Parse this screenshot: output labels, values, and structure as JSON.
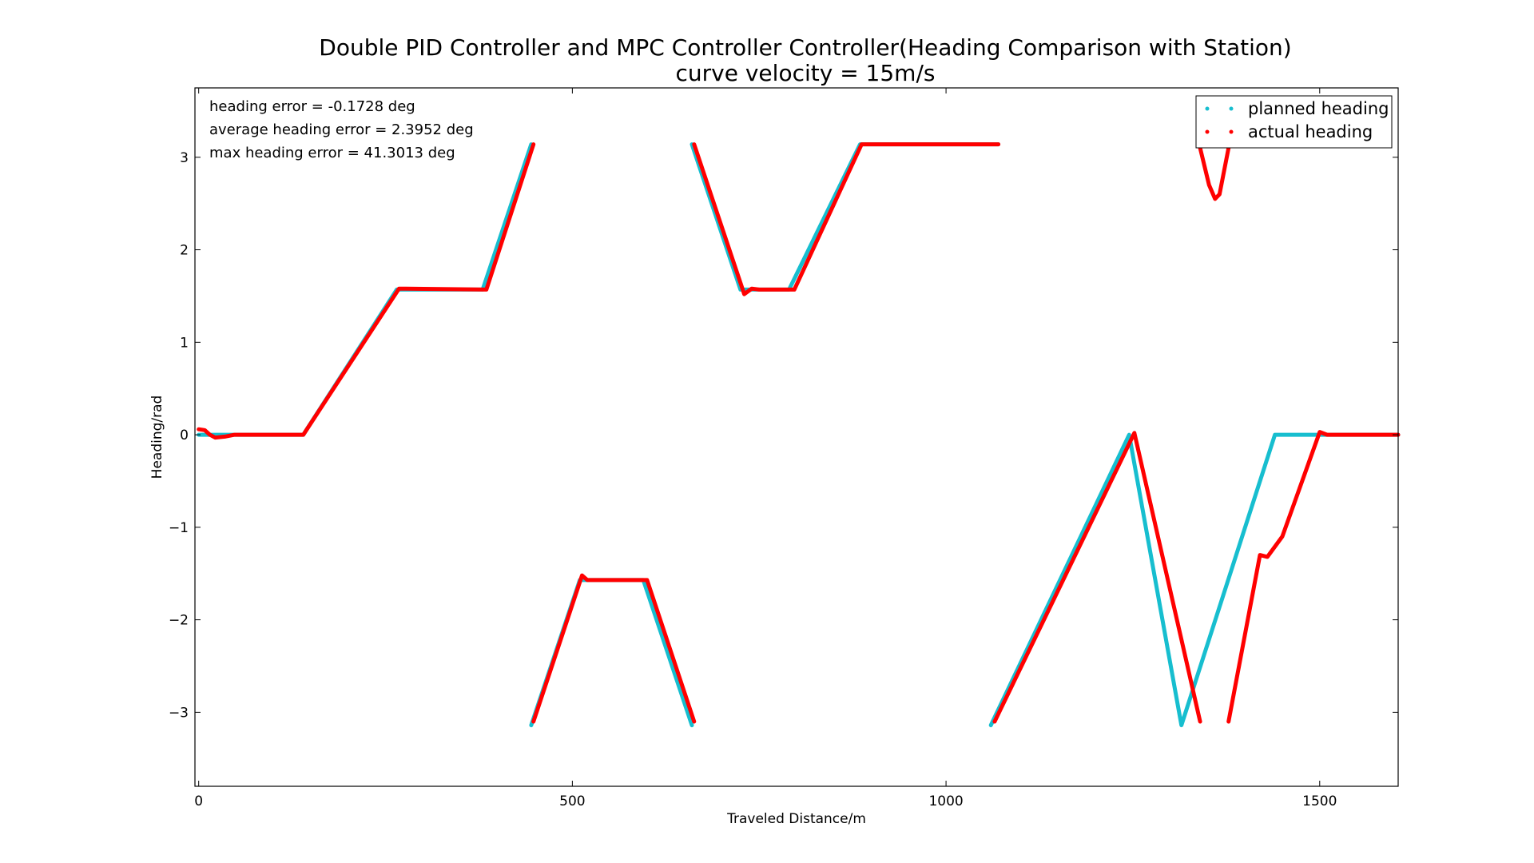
{
  "chart_data": {
    "type": "line",
    "title": "Double PID Controller and MPC Controller Controller(Heading Comparison with Station)",
    "subtitle": "curve velocity = 15m/s",
    "xlabel": "Traveled Distance/m",
    "ylabel": "Heading/rad",
    "xlim": [
      -5,
      1605
    ],
    "ylim": [
      -3.8,
      3.75
    ],
    "xticks": [
      0,
      500,
      1000,
      1500
    ],
    "yticks": [
      -3,
      -2,
      -1,
      0,
      1,
      2,
      3
    ],
    "grid": false,
    "legend_position": "top-right",
    "annotations": [
      "heading error = -0.1728 deg",
      "average heading error = 2.3952 deg",
      "max heading error = 41.3013 deg"
    ],
    "series": [
      {
        "name": "planned heading",
        "color": "#17becf",
        "segments": [
          [
            [
              0,
              0
            ],
            [
              140,
              0
            ],
            [
              265,
              1.57
            ],
            [
              380,
              1.57
            ],
            [
              445,
              3.14
            ]
          ],
          [
            [
              445,
              -3.14
            ],
            [
              510,
              -1.57
            ],
            [
              595,
              -1.57
            ],
            [
              660,
              -3.14
            ]
          ],
          [
            [
              660,
              3.14
            ],
            [
              725,
              1.57
            ],
            [
              790,
              1.57
            ],
            [
              885,
              3.14
            ],
            [
              1070,
              3.14
            ]
          ],
          [
            [
              1060,
              -3.14
            ],
            [
              1245,
              0
            ],
            [
              1315,
              -3.14
            ],
            [
              1440,
              0
            ],
            [
              1605,
              0
            ]
          ]
        ]
      },
      {
        "name": "actual heading",
        "color": "#ff0000",
        "segments": [
          [
            [
              0,
              0.06
            ],
            [
              8,
              0.05
            ],
            [
              15,
              0.0
            ],
            [
              22,
              -0.03
            ],
            [
              35,
              -0.02
            ],
            [
              48,
              0
            ],
            [
              140,
              0
            ],
            [
              268,
              1.58
            ],
            [
              385,
              1.57
            ],
            [
              448,
              3.14
            ]
          ],
          [
            [
              448,
              -3.1
            ],
            [
              513,
              -1.52
            ],
            [
              520,
              -1.57
            ],
            [
              530,
              -1.57
            ],
            [
              600,
              -1.57
            ],
            [
              663,
              -3.1
            ]
          ],
          [
            [
              663,
              3.14
            ],
            [
              730,
              1.52
            ],
            [
              740,
              1.58
            ],
            [
              750,
              1.57
            ],
            [
              797,
              1.57
            ],
            [
              887,
              3.14
            ],
            [
              1070,
              3.14
            ]
          ],
          [
            [
              1065,
              -3.1
            ],
            [
              1252,
              0.02
            ],
            [
              1340,
              -3.1
            ]
          ],
          [
            [
              1340,
              3.1
            ],
            [
              1352,
              2.7
            ],
            [
              1360,
              2.55
            ],
            [
              1366,
              2.6
            ],
            [
              1378,
              3.1
            ]
          ],
          [
            [
              1378,
              -3.1
            ],
            [
              1420,
              -1.3
            ],
            [
              1430,
              -1.32
            ],
            [
              1450,
              -1.1
            ],
            [
              1500,
              0.03
            ],
            [
              1510,
              0
            ],
            [
              1605,
              0
            ]
          ]
        ]
      }
    ]
  }
}
